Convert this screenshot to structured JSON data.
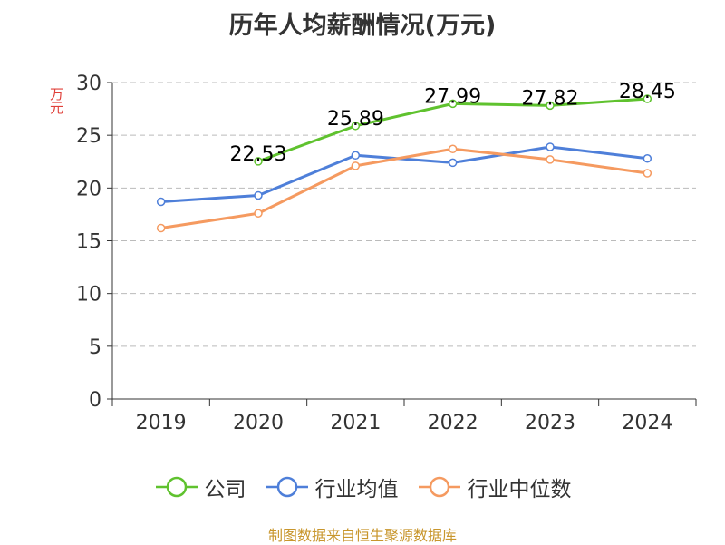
{
  "chart_data": {
    "type": "line",
    "title": "历年人均薪酬情况(万元)",
    "ylabel": "万元",
    "xlabel": "",
    "categories": [
      "2019",
      "2020",
      "2021",
      "2022",
      "2023",
      "2024"
    ],
    "ylim": [
      0,
      30
    ],
    "yticks": [
      0,
      5,
      10,
      15,
      20,
      25,
      30
    ],
    "grid": true,
    "legend_position": "bottom",
    "series": [
      {
        "name": "公司",
        "values": [
          null,
          22.53,
          25.89,
          27.99,
          27.82,
          28.45
        ],
        "color": "#5fc22e",
        "show_labels": true
      },
      {
        "name": "行业均值",
        "values": [
          18.7,
          19.3,
          23.1,
          22.4,
          23.9,
          22.8
        ],
        "color": "#4e7fd9",
        "show_labels": false
      },
      {
        "name": "行业中位数",
        "values": [
          16.2,
          17.6,
          22.1,
          23.7,
          22.7,
          21.4
        ],
        "color": "#f59a60",
        "show_labels": false
      }
    ]
  },
  "source": "制图数据来自恒生聚源数据库",
  "colors": {
    "source_text": "#c8962c",
    "ylabel_text": "#e0403a",
    "axis": "#333333",
    "grid": "#bbbbbb"
  }
}
